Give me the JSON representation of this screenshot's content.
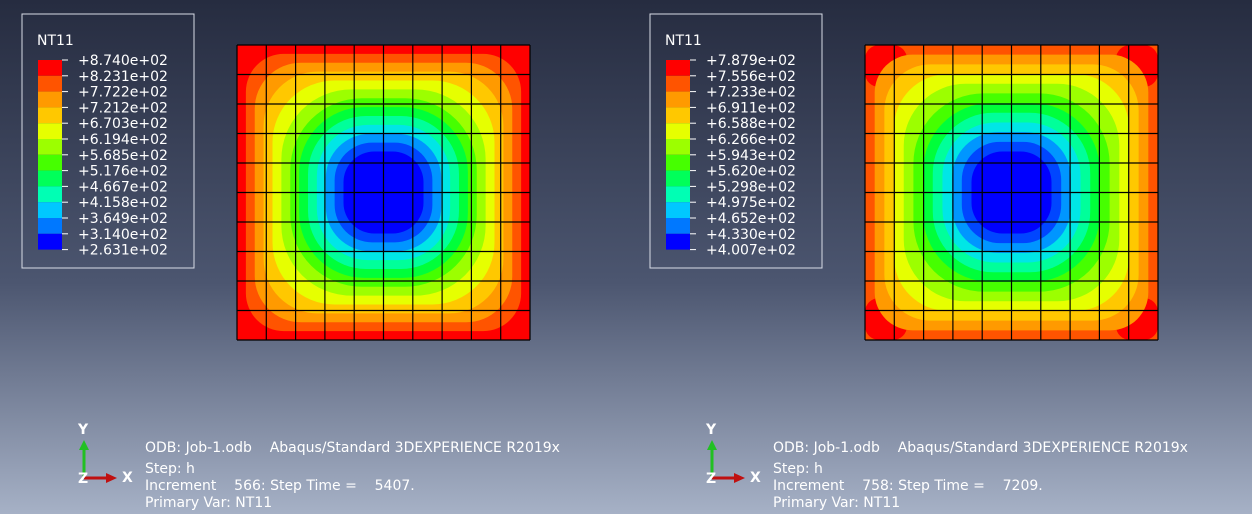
{
  "panels": [
    {
      "legend": {
        "title": "NT11",
        "labels": [
          "+8.740e+02",
          "+8.231e+02",
          "+7.722e+02",
          "+7.212e+02",
          "+6.703e+02",
          "+6.194e+02",
          "+5.685e+02",
          "+5.176e+02",
          "+4.667e+02",
          "+4.158e+02",
          "+3.649e+02",
          "+3.140e+02",
          "+2.631e+02"
        ]
      },
      "triad": {
        "y": "Y",
        "x": "X",
        "z": "Z"
      },
      "info": [
        "ODB: Job-1.odb    Abaqus/Standard 3DEXPERIENCE R2019x",
        "Step: h",
        "Increment    566: Step Time =    5407.",
        "Primary Var: NT11"
      ]
    },
    {
      "legend": {
        "title": "NT11",
        "labels": [
          "+7.879e+02",
          "+7.556e+02",
          "+7.233e+02",
          "+6.911e+02",
          "+6.588e+02",
          "+6.266e+02",
          "+5.943e+02",
          "+5.620e+02",
          "+5.298e+02",
          "+4.975e+02",
          "+4.652e+02",
          "+4.330e+02",
          "+4.007e+02"
        ]
      },
      "triad": {
        "y": "Y",
        "x": "X",
        "z": "Z"
      },
      "info": [
        "ODB: Job-1.odb    Abaqus/Standard 3DEXPERIENCE R2019x",
        "Step: h",
        "Increment    758: Step Time =    7209.",
        "Primary Var: NT11"
      ]
    }
  ]
}
